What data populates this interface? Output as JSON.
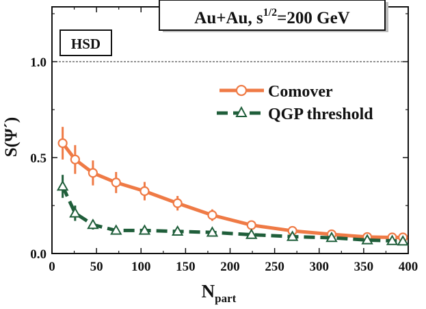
{
  "chart_data": {
    "type": "line",
    "title_box": {
      "prefix": "Au+Au,  s",
      "superscript": "1/2",
      "suffix": "=200 GeV"
    },
    "model_label": "HSD",
    "xlabel_main": "N",
    "xlabel_sub": "part",
    "ylabel": "S(Ψ´)",
    "xlim": [
      0,
      400
    ],
    "ylim": [
      0,
      1.25
    ],
    "xticks": [
      0,
      50,
      100,
      150,
      200,
      250,
      300,
      350,
      400
    ],
    "yticks": [
      0.0,
      0.5,
      1.0
    ],
    "ytick_labels": [
      "0.0",
      "0.5",
      "1.0"
    ],
    "reference_line": 1.0,
    "legend_position": "top-right",
    "series": [
      {
        "name": "Comover",
        "color": "#ef7a45",
        "marker": "circle",
        "x": [
          12,
          26,
          46,
          72,
          104,
          141,
          180,
          224,
          270,
          314,
          354,
          382,
          394
        ],
        "y": [
          0.575,
          0.49,
          0.42,
          0.37,
          0.325,
          0.262,
          0.2,
          0.148,
          0.118,
          0.1,
          0.086,
          0.084,
          0.084
        ],
        "err": [
          0.085,
          0.075,
          0.065,
          0.055,
          0.048,
          0.038,
          0.03,
          0.02,
          0.015,
          0.012,
          0.01,
          0.01,
          0.01
        ]
      },
      {
        "name": "QGP threshold",
        "color": "#1f5e3a",
        "marker": "triangle",
        "x": [
          12,
          26,
          46,
          72,
          104,
          141,
          180,
          224,
          270,
          314,
          354,
          382,
          394
        ],
        "y": [
          0.35,
          0.21,
          0.15,
          0.12,
          0.12,
          0.115,
          0.11,
          0.098,
          0.088,
          0.082,
          0.07,
          0.066,
          0.064
        ],
        "err": [
          0.06,
          0.04,
          0.025,
          0.015,
          0.015,
          0.012,
          0.012,
          0.01,
          0.01,
          0.01,
          0.01,
          0.01,
          0.01
        ]
      }
    ]
  }
}
